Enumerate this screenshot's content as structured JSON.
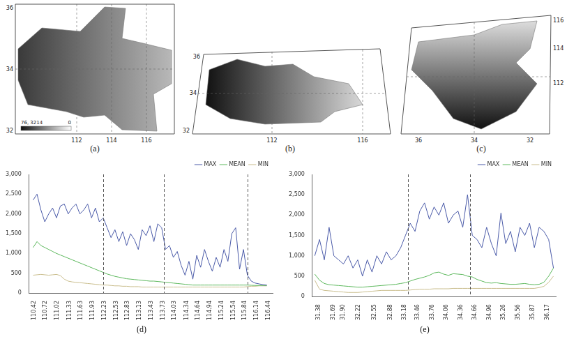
{
  "chart_data": [
    {
      "type": "line",
      "label": "(d)",
      "x": [
        110.4,
        110.5,
        110.6,
        110.7,
        110.8,
        110.9,
        111.0,
        111.1,
        111.2,
        111.3,
        111.4,
        111.5,
        111.6,
        111.7,
        111.8,
        111.9,
        112.0,
        112.1,
        112.2,
        112.3,
        112.4,
        112.5,
        112.6,
        112.7,
        112.8,
        112.9,
        113.0,
        113.1,
        113.2,
        113.3,
        113.4,
        113.5,
        113.6,
        113.7,
        113.8,
        113.9,
        114.0,
        114.1,
        114.2,
        114.3,
        114.4,
        114.5,
        114.6,
        114.7,
        114.8,
        114.9,
        115.0,
        115.1,
        115.2,
        115.3,
        115.4,
        115.5,
        115.6,
        115.7,
        115.8,
        115.9,
        116.0,
        116.1,
        116.2,
        116.3,
        116.4
      ],
      "series": [
        {
          "name": "MAX",
          "color": "#4a5aa8",
          "values": [
            2350,
            2500,
            2100,
            1800,
            2000,
            2150,
            1900,
            2200,
            2250,
            2000,
            2150,
            2250,
            2000,
            2100,
            2250,
            1900,
            2150,
            1800,
            1900,
            1650,
            1400,
            1600,
            1300,
            1550,
            1200,
            1500,
            1350,
            1100,
            1600,
            1450,
            1700,
            1300,
            1750,
            1650,
            1100,
            1200,
            900,
            1050,
            700,
            450,
            800,
            350,
            950,
            650,
            1100,
            800,
            550,
            900,
            650,
            1100,
            800,
            1500,
            1650,
            600,
            1100,
            450,
            300,
            250,
            230,
            210,
            200
          ]
        },
        {
          "name": "MEAN",
          "color": "#5cb85c",
          "values": [
            1150,
            1300,
            1200,
            1150,
            1100,
            1050,
            1000,
            960,
            920,
            880,
            840,
            800,
            760,
            720,
            680,
            640,
            600,
            560,
            520,
            480,
            450,
            420,
            400,
            380,
            360,
            350,
            340,
            330,
            320,
            310,
            300,
            300,
            290,
            280,
            270,
            260,
            250,
            240,
            230,
            220,
            210,
            200,
            200,
            200,
            200,
            200,
            200,
            200,
            200,
            200,
            200,
            200,
            200,
            200,
            200,
            200,
            195,
            190,
            190,
            190,
            190
          ]
        },
        {
          "name": "MIN",
          "color": "#c9bd8c",
          "values": [
            450,
            460,
            470,
            460,
            450,
            460,
            470,
            440,
            350,
            300,
            280,
            270,
            260,
            250,
            240,
            230,
            220,
            210,
            200,
            200,
            190,
            180,
            180,
            170,
            170,
            160,
            160,
            160,
            150,
            150,
            150,
            150,
            150,
            150,
            150,
            150,
            150,
            150,
            150,
            150,
            150,
            150,
            150,
            150,
            150,
            150,
            150,
            150,
            150,
            150,
            150,
            150,
            150,
            150,
            150,
            160,
            170,
            170,
            180,
            180,
            180
          ]
        }
      ],
      "xlim": [
        110.3,
        116.55
      ],
      "xticks": [
        110.42,
        110.72,
        111.02,
        111.33,
        111.63,
        111.93,
        112.23,
        112.53,
        112.83,
        113.13,
        113.43,
        113.73,
        114.03,
        114.34,
        114.64,
        114.94,
        115.24,
        115.54,
        115.84,
        116.14,
        116.44
      ],
      "ylim": [
        0,
        3000
      ],
      "yticks": [
        0,
        500,
        {
          "value": 1000,
          "label": "1,000"
        },
        {
          "value": 1500,
          "label": "1,500"
        },
        {
          "value": 2000,
          "label": "2,000"
        },
        {
          "value": 2500,
          "label": "2,500"
        },
        {
          "value": 3000,
          "label": "3,000"
        }
      ],
      "grid": false,
      "legend": "top right",
      "dividers": [
        112.2,
        113.75,
        115.9
      ]
    },
    {
      "type": "line",
      "label": "(e)",
      "x": [
        31.3,
        31.4,
        31.5,
        31.6,
        31.7,
        31.8,
        31.9,
        32.0,
        32.1,
        32.2,
        32.3,
        32.4,
        32.5,
        32.6,
        32.7,
        32.8,
        32.9,
        33.0,
        33.1,
        33.2,
        33.3,
        33.4,
        33.5,
        33.6,
        33.7,
        33.8,
        33.9,
        34.0,
        34.1,
        34.2,
        34.3,
        34.4,
        34.5,
        34.6,
        34.7,
        34.8,
        34.9,
        35.0,
        35.1,
        35.2,
        35.3,
        35.4,
        35.5,
        35.6,
        35.7,
        35.8,
        35.9,
        36.0,
        36.1,
        36.2,
        36.3
      ],
      "series": [
        {
          "name": "MAX",
          "color": "#4a5aa8",
          "values": [
            1000,
            1400,
            900,
            1700,
            1000,
            900,
            800,
            1000,
            700,
            900,
            500,
            900,
            600,
            1000,
            800,
            1100,
            900,
            1000,
            1200,
            1500,
            1800,
            1600,
            2100,
            2300,
            1900,
            2200,
            2000,
            2300,
            1800,
            2000,
            2100,
            1700,
            2500,
            1500,
            1400,
            1200,
            1700,
            1300,
            1000,
            2050,
            1300,
            1600,
            1100,
            1700,
            1500,
            1800,
            1200,
            1700,
            1600,
            1400,
            700
          ]
        },
        {
          "name": "MEAN",
          "color": "#5cb85c",
          "values": [
            550,
            400,
            320,
            290,
            280,
            270,
            260,
            250,
            240,
            230,
            230,
            240,
            250,
            260,
            270,
            280,
            290,
            300,
            320,
            340,
            380,
            420,
            450,
            480,
            520,
            580,
            600,
            550,
            520,
            560,
            550,
            540,
            500,
            480,
            420,
            380,
            340,
            330,
            340,
            320,
            310,
            300,
            300,
            310,
            320,
            300,
            290,
            300,
            350,
            500,
            700
          ]
        },
        {
          "name": "MIN",
          "color": "#c9bd8c",
          "values": [
            400,
            180,
            150,
            140,
            130,
            120,
            110,
            100,
            100,
            100,
            110,
            120,
            130,
            140,
            150,
            150,
            150,
            150,
            150,
            150,
            160,
            170,
            180,
            180,
            180,
            190,
            190,
            190,
            190,
            200,
            200,
            200,
            200,
            200,
            200,
            200,
            200,
            200,
            200,
            200,
            200,
            200,
            200,
            200,
            200,
            200,
            200,
            220,
            250,
            350,
            500
          ]
        }
      ],
      "xlim": [
        31.25,
        36.35
      ],
      "xticks": [
        31.38,
        31.69,
        {
          "value": 31.9,
          "label": "31.90"
        },
        32.22,
        32.55,
        32.88,
        33.18,
        33.46,
        33.76,
        34.06,
        34.36,
        34.66,
        34.96,
        35.26,
        35.56,
        35.87,
        36.17
      ],
      "ylim": [
        0,
        3000
      ],
      "yticks": [
        0,
        500,
        {
          "value": 1000,
          "label": "1,000"
        },
        {
          "value": 1500,
          "label": "1,500"
        },
        {
          "value": 2000,
          "label": "2,000"
        },
        {
          "value": 2500,
          "label": "2,500"
        },
        {
          "value": 3000,
          "label": "3,000"
        }
      ],
      "grid": false,
      "legend": "top right",
      "dividers": [
        33.25,
        34.55
      ]
    }
  ],
  "maps": [
    {
      "label": "(a)",
      "lat_ticks": [
        36,
        34,
        32
      ],
      "lon_ticks": [
        112,
        114,
        116
      ],
      "colorbar_labels": [
        "76, 3214",
        "0"
      ]
    },
    {
      "label": "(b)",
      "lat_ticks": [
        36,
        34,
        32
      ],
      "lon_ticks": [
        112,
        116
      ]
    },
    {
      "label": "(c)",
      "lat_ticks": [
        36,
        34,
        32
      ],
      "lon_ticks": [
        116,
        114,
        112
      ]
    }
  ]
}
